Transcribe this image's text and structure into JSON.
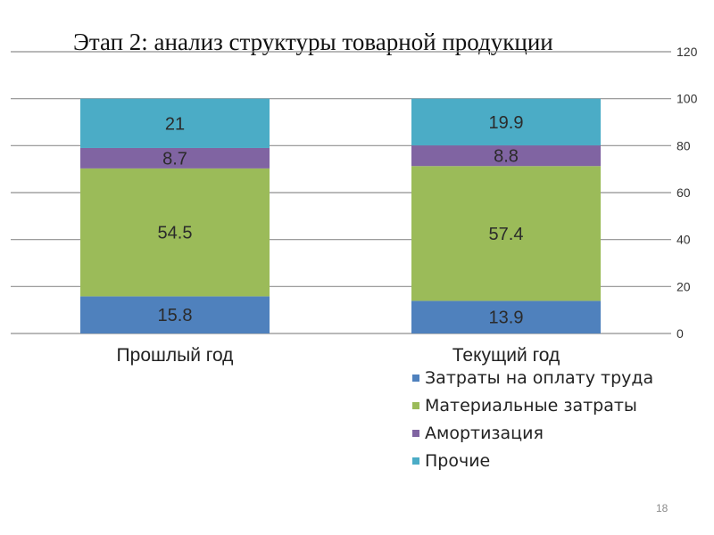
{
  "slide": {
    "title": "Этап 2: анализ структуры товарной продукции",
    "page_number": "18"
  },
  "chart_data": {
    "type": "bar",
    "stacked": true,
    "categories": [
      "Прошлый год",
      "Текущий год"
    ],
    "series": [
      {
        "name": "Затраты на оплату труда",
        "values": [
          15.8,
          13.9
        ],
        "color": "#4f81bd"
      },
      {
        "name": "Материальные затраты",
        "values": [
          54.5,
          57.4
        ],
        "color": "#9bbb59"
      },
      {
        "name": "Амортизация",
        "values": [
          8.7,
          8.8
        ],
        "color": "#8064a2"
      },
      {
        "name": "Прочие",
        "values": [
          21,
          19.9
        ],
        "color": "#4bacc6"
      }
    ],
    "value_labels": [
      [
        "15.8",
        "13.9"
      ],
      [
        "54.5",
        "57.4"
      ],
      [
        "8.7",
        "8.8"
      ],
      [
        "21",
        "19.9"
      ]
    ],
    "ylim": [
      0,
      120
    ],
    "yticks": [
      "0",
      "20",
      "40",
      "60",
      "80",
      "100",
      "120"
    ],
    "y_axis_side": "right",
    "grid": true,
    "legend_position": "bottom-right",
    "title": "",
    "xlabel": "",
    "ylabel": ""
  }
}
